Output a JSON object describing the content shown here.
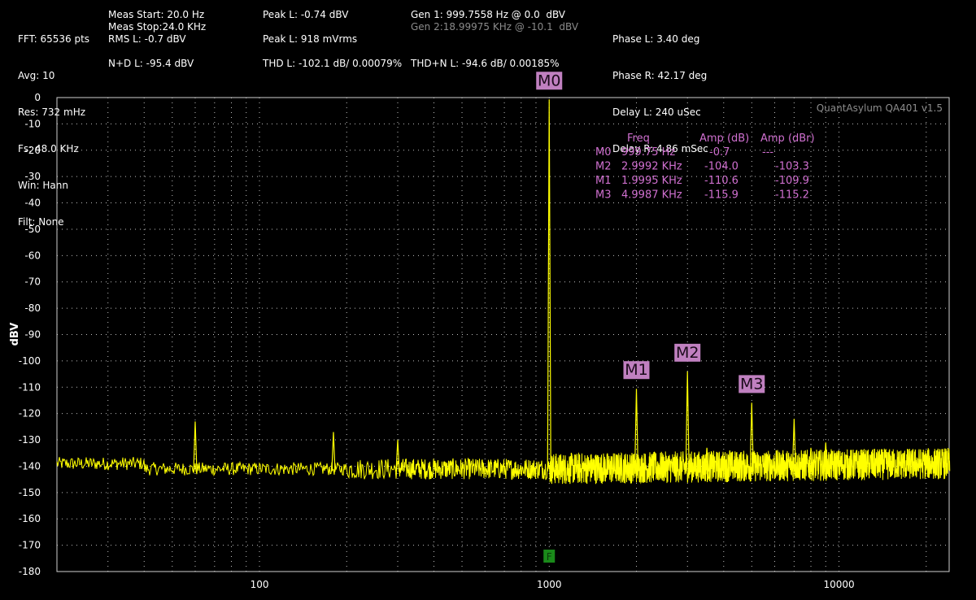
{
  "header": {
    "col1": [
      "FFT: 65536 pts",
      "Avg: 10",
      "Res: 732 mHz",
      "Fs: 48.0 KHz",
      "Win: Hann",
      "Filt: None"
    ],
    "meas_start": "Meas Start: 20.0 Hz",
    "meas_stop": "Meas Stop:24.0 KHz",
    "rms_l": "RMS L: -0.7 dBV",
    "nd_l": "N+D L: -95.4 dBV",
    "peak_l_dbv": "Peak L: -0.74 dBV",
    "peak_l_mv": "Peak L: 918 mVrms",
    "thd_l": "THD L: -102.1 dB/ 0.00079%",
    "gen1": "Gen 1: 999.7558 Hz @ 0.0  dBV",
    "gen2": "Gen 2:18.99975 KHz @ -10.1  dBV",
    "thdn_l": "THD+N L: -94.6 dB/ 0.00185%",
    "phase": [
      "Phase L: 3.40 deg",
      "Phase R: 42.17 deg",
      "Delay L: 240 uSec",
      "Delay R: 4.86 mSec"
    ]
  },
  "watermark": "QuantAsylum QA401 v1.5",
  "marker_table": {
    "headers": [
      "Freq",
      "Amp (dB)",
      "Amp (dBr)"
    ],
    "rows": [
      [
        "M0",
        "999.75 Hz",
        "-0.7",
        "---"
      ],
      [
        "M2",
        "2.9992 KHz",
        "-104.0",
        "-103.3"
      ],
      [
        "M1",
        "1.9995 KHz",
        "-110.6",
        "-109.9"
      ],
      [
        "M3",
        "4.9987 KHz",
        "-115.9",
        "-115.2"
      ]
    ]
  },
  "colors": {
    "trace": "#ffff00",
    "grid": "#d0d0d0",
    "marker_bg": "#c080c0",
    "marker_table": "#d070d0",
    "f_marker": "#1a8a1a"
  },
  "chart_data": {
    "type": "line",
    "xscale": "log",
    "xlim": [
      20,
      24000
    ],
    "ylim": [
      -180,
      0
    ],
    "ylabel": "dBV",
    "xticks": [
      100,
      1000,
      10000
    ],
    "yticks": [
      0,
      -10,
      -20,
      -30,
      -40,
      -50,
      -60,
      -70,
      -80,
      -90,
      -100,
      -110,
      -120,
      -130,
      -140,
      -150,
      -160,
      -170,
      -180
    ],
    "noise_floor_db": -140,
    "spikes": [
      {
        "x": 60,
        "y": -123
      },
      {
        "x": 180,
        "y": -127
      },
      {
        "x": 300,
        "y": -130
      },
      {
        "x": 999.75,
        "y": -0.7
      },
      {
        "x": 1999.5,
        "y": -110.6
      },
      {
        "x": 2999.2,
        "y": -104.0
      },
      {
        "x": 3500,
        "y": -133
      },
      {
        "x": 4200,
        "y": -134
      },
      {
        "x": 4998.7,
        "y": -115.9
      },
      {
        "x": 7000,
        "y": -122
      },
      {
        "x": 8000,
        "y": -133
      },
      {
        "x": 9000,
        "y": -131
      }
    ],
    "markers": [
      {
        "label": "M0",
        "x": 999.75,
        "y": -0.7
      },
      {
        "label": "M1",
        "x": 1999.5,
        "y": -110.6
      },
      {
        "label": "M2",
        "x": 2999.2,
        "y": -104.0
      },
      {
        "label": "M3",
        "x": 4998.7,
        "y": -115.9
      }
    ],
    "f_marker": {
      "label": "F",
      "x": 999.75
    }
  }
}
